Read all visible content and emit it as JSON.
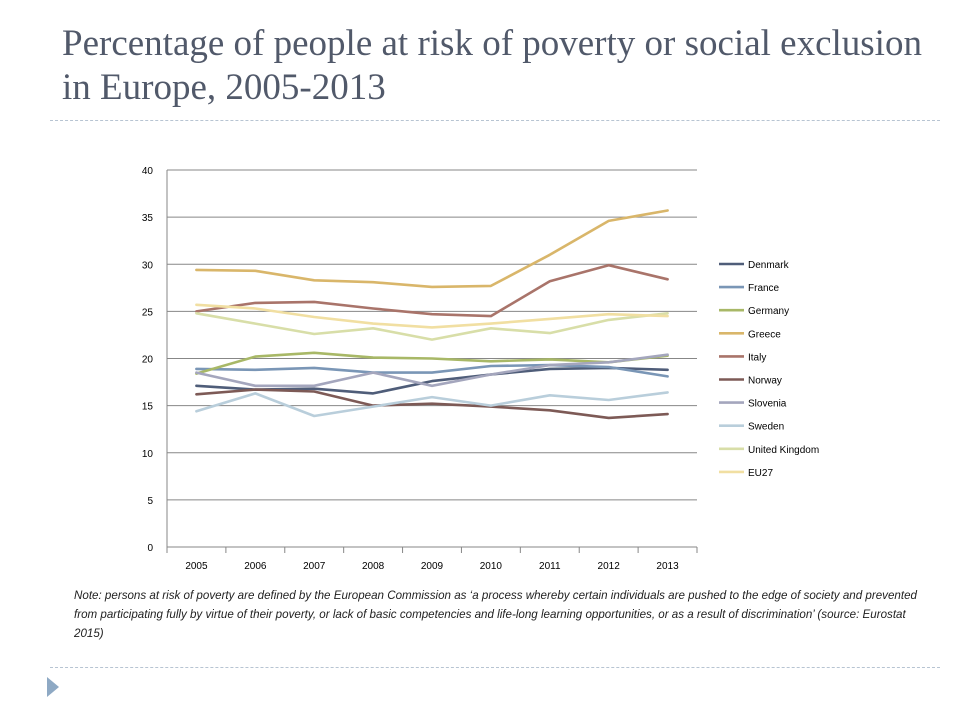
{
  "slide": {
    "title": "Percentage of people at risk of poverty or social exclusion in Europe, 2005-2013",
    "note": "Note: persons at risk of poverty are defined by the European Commission as ‘a process whereby certain individuals are pushed to the edge of society and prevented from participating fully by virtue of their poverty, or lack of basic competencies and life-long learning opportunities, or as a result of discrimination’ (source: Eurostat 2015)"
  },
  "icons": {
    "bullet": "triangle-bullet-icon"
  },
  "chart_data": {
    "type": "line",
    "title": "",
    "xlabel": "",
    "ylabel": "",
    "x": [
      "2005",
      "2006",
      "2007",
      "2008",
      "2009",
      "2010",
      "2011",
      "2012",
      "2013"
    ],
    "ylim": [
      0,
      40
    ],
    "yticks": [
      "0",
      "5",
      "10",
      "15",
      "20",
      "25",
      "30",
      "35",
      "40"
    ],
    "grid": true,
    "legend_position": "right",
    "series": [
      {
        "name": "Denmark",
        "color": "#4f5d79",
        "values": [
          17.1,
          16.7,
          16.8,
          16.3,
          17.6,
          18.3,
          18.9,
          19.0,
          18.8
        ]
      },
      {
        "name": "France",
        "color": "#7a96b6",
        "values": [
          18.9,
          18.8,
          19.0,
          18.5,
          18.5,
          19.2,
          19.3,
          19.1,
          18.1
        ]
      },
      {
        "name": "Germany",
        "color": "#a8b867",
        "values": [
          18.4,
          20.2,
          20.6,
          20.1,
          20.0,
          19.7,
          19.9,
          19.6,
          20.3
        ]
      },
      {
        "name": "Greece",
        "color": "#d9b66a",
        "values": [
          29.4,
          29.3,
          28.3,
          28.1,
          27.6,
          27.7,
          31.0,
          34.6,
          35.7
        ]
      },
      {
        "name": "Italy",
        "color": "#a9746a",
        "values": [
          25.0,
          25.9,
          26.0,
          25.3,
          24.7,
          24.5,
          28.2,
          29.9,
          28.4
        ]
      },
      {
        "name": "Norway",
        "color": "#7d5a56",
        "values": [
          16.2,
          16.7,
          16.5,
          15.0,
          15.2,
          14.9,
          14.5,
          13.7,
          14.1
        ]
      },
      {
        "name": "Slovenia",
        "color": "#a4a6bd",
        "values": [
          18.5,
          17.1,
          17.1,
          18.5,
          17.1,
          18.3,
          19.3,
          19.6,
          20.4
        ]
      },
      {
        "name": "Sweden",
        "color": "#b9cedb",
        "values": [
          14.4,
          16.3,
          13.9,
          14.9,
          15.9,
          15.0,
          16.1,
          15.6,
          16.4
        ]
      },
      {
        "name": "United Kingdom",
        "color": "#d8dea8",
        "values": [
          24.8,
          23.7,
          22.6,
          23.2,
          22.0,
          23.2,
          22.7,
          24.1,
          24.8
        ]
      },
      {
        "name": "EU27",
        "color": "#f1dfa2",
        "values": [
          25.7,
          25.3,
          24.4,
          23.7,
          23.3,
          23.7,
          24.2,
          24.7,
          24.5
        ]
      }
    ]
  }
}
